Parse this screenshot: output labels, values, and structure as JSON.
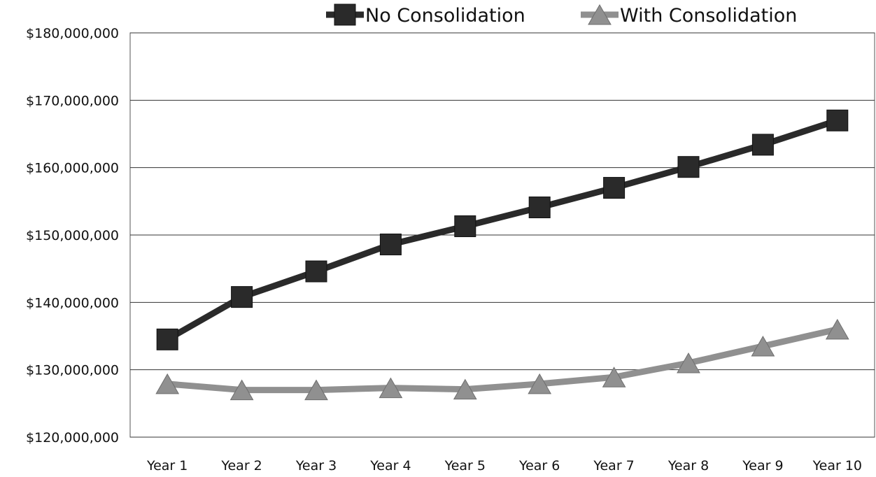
{
  "chart_data": {
    "type": "line",
    "categories": [
      "Year 1",
      "Year 2",
      "Year 3",
      "Year 4",
      "Year 5",
      "Year 6",
      "Year 7",
      "Year 8",
      "Year 9",
      "Year 10"
    ],
    "series": [
      {
        "name": "No Consolidation",
        "color": "#2a2a2a",
        "marker": "square",
        "values": [
          134500000,
          140800000,
          144600000,
          148600000,
          151300000,
          154100000,
          157000000,
          160100000,
          163400000,
          167000000
        ]
      },
      {
        "name": "With Consolidation",
        "color": "#909090",
        "marker": "triangle",
        "values": [
          127900000,
          127000000,
          127000000,
          127300000,
          127100000,
          127900000,
          128900000,
          131000000,
          133500000,
          136000000
        ]
      }
    ],
    "ylim": [
      120000000,
      180000000
    ],
    "yticks": [
      120000000,
      130000000,
      140000000,
      150000000,
      160000000,
      170000000,
      180000000
    ],
    "ytick_labels": [
      "$120,000,000",
      "$130,000,000",
      "$140,000,000",
      "$150,000,000",
      "$160,000,000",
      "$170,000,000",
      "$180,000,000"
    ],
    "grid": true,
    "legend_position": "top"
  }
}
